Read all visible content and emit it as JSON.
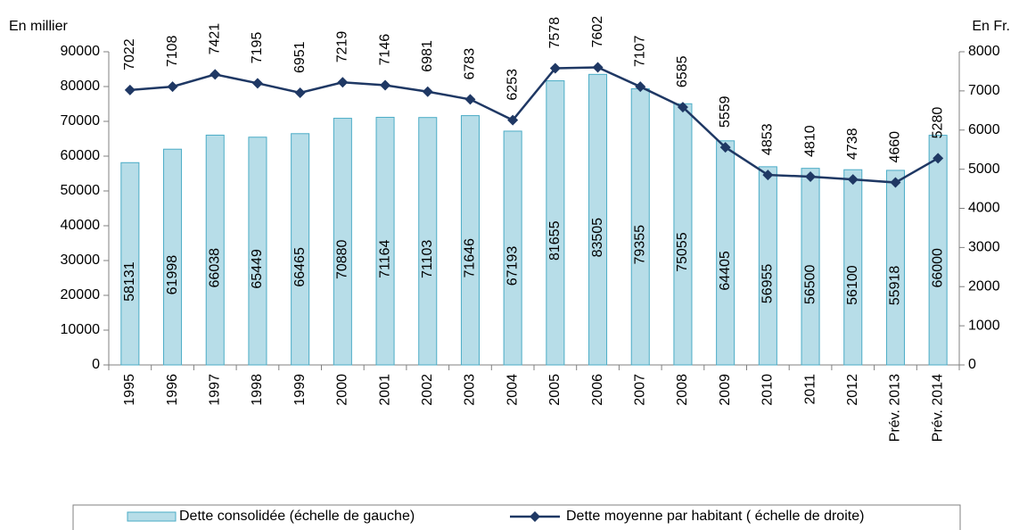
{
  "chart_data": {
    "type": "bar-line",
    "y_label": "En millier",
    "y2_label": "En Fr.",
    "categories": [
      "1995",
      "1996",
      "1997",
      "1998",
      "1999",
      "2000",
      "2001",
      "2002",
      "2003",
      "2004",
      "2005",
      "2006",
      "2007",
      "2008",
      "2009",
      "2010",
      "2011",
      "2012",
      "Prév. 2013",
      "Prév. 2014"
    ],
    "series": [
      {
        "name": "Dette consolidée (échelle de gauche)",
        "type": "bar",
        "color": "#b7dde8",
        "edge_color": "#4bacc6",
        "values": [
          58131,
          61998,
          66038,
          65449,
          66465,
          70880,
          71164,
          71103,
          71646,
          67193,
          81655,
          83505,
          79355,
          75055,
          64405,
          56955,
          56500,
          56100,
          55918,
          66000
        ]
      },
      {
        "name": "Dette moyenne par habitant ( échelle de droite)",
        "type": "line",
        "axis": "y2",
        "color": "#1f3864",
        "values": [
          7022,
          7108,
          7421,
          7195,
          6951,
          7219,
          7146,
          6981,
          6783,
          6253,
          7578,
          7602,
          7107,
          6585,
          5559,
          4853,
          4810,
          4738,
          4660,
          5280
        ]
      }
    ],
    "ylim": [
      0,
      90000
    ],
    "yticks": [
      0,
      10000,
      20000,
      30000,
      40000,
      50000,
      60000,
      70000,
      80000,
      90000
    ],
    "y2lim": [
      0,
      8000
    ],
    "y2ticks": [
      0,
      1000,
      2000,
      3000,
      4000,
      5000,
      6000,
      7000,
      8000
    ],
    "legend": "bottom"
  }
}
